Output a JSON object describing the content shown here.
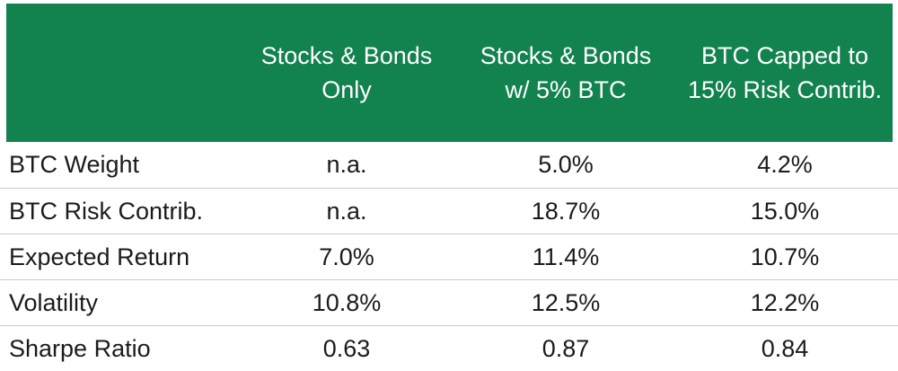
{
  "theme": {
    "header_bg": "#12824F",
    "header_text": "#FFFFFF",
    "body_text": "#1B1B1B",
    "divider": "#CBCBCB",
    "page_bg": "#FFFFFF"
  },
  "table": {
    "header": {
      "columns": [
        {
          "line1": "Stocks & Bonds",
          "line2": "Only"
        },
        {
          "line1": "Stocks & Bonds",
          "line2": "w/ 5% BTC"
        },
        {
          "line1": "BTC Capped to",
          "line2": "15% Risk Contrib."
        }
      ]
    },
    "rows": [
      {
        "label": "BTC Weight",
        "values": [
          "n.a.",
          "5.0%",
          "4.2%"
        ]
      },
      {
        "label": "BTC Risk Contrib.",
        "values": [
          "n.a.",
          "18.7%",
          "15.0%"
        ]
      },
      {
        "label": "Expected Return",
        "values": [
          "7.0%",
          "11.4%",
          "10.7%"
        ]
      },
      {
        "label": "Volatility",
        "values": [
          "10.8%",
          "12.5%",
          "12.2%"
        ]
      },
      {
        "label": "Sharpe Ratio",
        "values": [
          "0.63",
          "0.87",
          "0.84"
        ]
      }
    ]
  },
  "chart_data": {
    "type": "table",
    "columns": [
      "",
      "Stocks & Bonds Only",
      "Stocks & Bonds w/ 5% BTC",
      "BTC Capped to 15% Risk Contrib."
    ],
    "rows": [
      [
        "BTC Weight",
        "n.a.",
        "5.0%",
        "4.2%"
      ],
      [
        "BTC Risk Contrib.",
        "n.a.",
        "18.7%",
        "15.0%"
      ],
      [
        "Expected Return",
        "7.0%",
        "11.4%",
        "10.7%"
      ],
      [
        "Volatility",
        "10.8%",
        "12.5%",
        "12.2%"
      ],
      [
        "Sharpe Ratio",
        "0.63",
        "0.87",
        "0.84"
      ]
    ],
    "layout_hints": {
      "header_fill": "#12824F",
      "header_text_color": "#FFFFFF",
      "row_divider_color": "#CBCBCB"
    }
  }
}
